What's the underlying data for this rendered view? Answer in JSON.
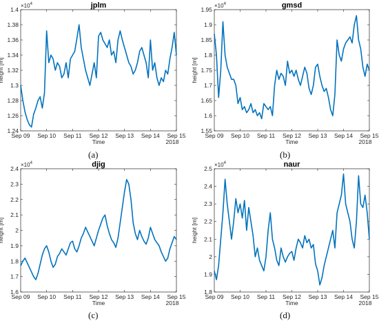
{
  "figure": {
    "captions": [
      "(a)",
      "(b)",
      "(c)",
      "(d)"
    ]
  },
  "style": {
    "line_color": "#0072BD",
    "axis_color": "#262626"
  },
  "chart_data": [
    {
      "type": "line",
      "title": "jplm",
      "xlabel": "Time",
      "ylabel": "height [m]",
      "exponent": "×10^4",
      "x_tick_labels": [
        "Sep 09",
        "Sep 10",
        "Sep 11",
        "Sep 12",
        "Sep 13",
        "Sep 14",
        "Sep 15"
      ],
      "x_year_label": "2018",
      "xlim": [
        "2018-09-09",
        "2018-09-15"
      ],
      "ylim": [
        1.24,
        1.4
      ],
      "y_ticks": [
        1.24,
        1.26,
        1.28,
        1.3,
        1.32,
        1.34,
        1.36,
        1.38,
        1.4
      ],
      "y_tick_labels": [
        "1.24",
        "1.26",
        "1.28",
        "1.3",
        "1.32",
        "1.34",
        "1.36",
        "1.38",
        "1.4"
      ],
      "series": [
        {
          "x": [
            "2018-09-09 00:00",
            "2018-09-09 02:00",
            "2018-09-09 04:00",
            "2018-09-09 06:00",
            "2018-09-09 08:00",
            "2018-09-09 10:00",
            "2018-09-09 12:00",
            "2018-09-09 14:00",
            "2018-09-09 16:00",
            "2018-09-09 18:00",
            "2018-09-09 20:00",
            "2018-09-09 22:00",
            "2018-09-10 00:00",
            "2018-09-10 02:00",
            "2018-09-10 04:00",
            "2018-09-10 06:00",
            "2018-09-10 08:00",
            "2018-09-10 10:00",
            "2018-09-10 12:00",
            "2018-09-10 14:00",
            "2018-09-10 16:00",
            "2018-09-10 18:00",
            "2018-09-10 20:00",
            "2018-09-10 22:00",
            "2018-09-11 00:00",
            "2018-09-11 02:00",
            "2018-09-11 04:00",
            "2018-09-11 06:00",
            "2018-09-11 08:00",
            "2018-09-11 10:00",
            "2018-09-11 12:00",
            "2018-09-11 14:00",
            "2018-09-11 16:00",
            "2018-09-11 18:00",
            "2018-09-11 20:00",
            "2018-09-11 22:00",
            "2018-09-12 00:00",
            "2018-09-12 02:00",
            "2018-09-12 04:00",
            "2018-09-12 06:00",
            "2018-09-12 08:00",
            "2018-09-12 10:00",
            "2018-09-12 12:00",
            "2018-09-12 14:00",
            "2018-09-12 16:00",
            "2018-09-12 18:00",
            "2018-09-12 20:00",
            "2018-09-12 22:00",
            "2018-09-13 00:00",
            "2018-09-13 02:00",
            "2018-09-13 04:00",
            "2018-09-13 06:00",
            "2018-09-13 08:00",
            "2018-09-13 10:00",
            "2018-09-13 12:00",
            "2018-09-13 14:00",
            "2018-09-13 16:00",
            "2018-09-13 18:00",
            "2018-09-13 20:00",
            "2018-09-13 22:00",
            "2018-09-14 00:00",
            "2018-09-14 02:00",
            "2018-09-14 04:00",
            "2018-09-14 06:00",
            "2018-09-14 08:00",
            "2018-09-14 10:00",
            "2018-09-14 12:00",
            "2018-09-14 14:00",
            "2018-09-14 16:00",
            "2018-09-14 18:00",
            "2018-09-14 20:00",
            "2018-09-14 22:00",
            "2018-09-15 00:00"
          ],
          "y": [
            1.3,
            1.28,
            1.265,
            1.255,
            1.248,
            1.245,
            1.262,
            1.27,
            1.28,
            1.285,
            1.27,
            1.29,
            1.372,
            1.33,
            1.34,
            1.335,
            1.32,
            1.33,
            1.325,
            1.31,
            1.315,
            1.33,
            1.31,
            1.335,
            1.34,
            1.345,
            1.362,
            1.38,
            1.35,
            1.335,
            1.32,
            1.31,
            1.3,
            1.315,
            1.33,
            1.31,
            1.365,
            1.37,
            1.36,
            1.355,
            1.35,
            1.36,
            1.34,
            1.345,
            1.33,
            1.36,
            1.372,
            1.36,
            1.35,
            1.34,
            1.33,
            1.325,
            1.315,
            1.32,
            1.33,
            1.345,
            1.35,
            1.34,
            1.33,
            1.31,
            1.36,
            1.32,
            1.33,
            1.31,
            1.3,
            1.31,
            1.305,
            1.32,
            1.315,
            1.335,
            1.35,
            1.37,
            1.34
          ]
        }
      ]
    },
    {
      "type": "line",
      "title": "gmsd",
      "xlabel": "Time",
      "ylabel": "height [m]",
      "exponent": "×10^4",
      "x_tick_labels": [
        "Sep 09",
        "Sep 10",
        "Sep 11",
        "Sep 12",
        "Sep 13",
        "Sep 14",
        "Sep 15"
      ],
      "x_year_label": "2018",
      "xlim": [
        "2018-09-09",
        "2018-09-15"
      ],
      "ylim": [
        1.55,
        1.95
      ],
      "y_ticks": [
        1.55,
        1.6,
        1.65,
        1.7,
        1.75,
        1.8,
        1.85,
        1.9,
        1.95
      ],
      "y_tick_labels": [
        "1.55",
        "1.6",
        "1.65",
        "1.7",
        "1.75",
        "1.8",
        "1.85",
        "1.9",
        "1.95"
      ],
      "series": [
        {
          "x": [
            "2018-09-09 00:00",
            "2018-09-09 02:00",
            "2018-09-09 04:00",
            "2018-09-09 06:00",
            "2018-09-09 08:00",
            "2018-09-09 10:00",
            "2018-09-09 12:00",
            "2018-09-09 14:00",
            "2018-09-09 16:00",
            "2018-09-09 18:00",
            "2018-09-09 20:00",
            "2018-09-09 22:00",
            "2018-09-10 00:00",
            "2018-09-10 02:00",
            "2018-09-10 04:00",
            "2018-09-10 06:00",
            "2018-09-10 08:00",
            "2018-09-10 10:00",
            "2018-09-10 12:00",
            "2018-09-10 14:00",
            "2018-09-10 16:00",
            "2018-09-10 18:00",
            "2018-09-10 20:00",
            "2018-09-10 22:00",
            "2018-09-11 00:00",
            "2018-09-11 02:00",
            "2018-09-11 04:00",
            "2018-09-11 06:00",
            "2018-09-11 08:00",
            "2018-09-11 10:00",
            "2018-09-11 12:00",
            "2018-09-11 14:00",
            "2018-09-11 16:00",
            "2018-09-11 18:00",
            "2018-09-11 20:00",
            "2018-09-11 22:00",
            "2018-09-12 00:00",
            "2018-09-12 02:00",
            "2018-09-12 04:00",
            "2018-09-12 06:00",
            "2018-09-12 08:00",
            "2018-09-12 10:00",
            "2018-09-12 12:00",
            "2018-09-12 14:00",
            "2018-09-12 16:00",
            "2018-09-12 18:00",
            "2018-09-12 20:00",
            "2018-09-12 22:00",
            "2018-09-13 00:00",
            "2018-09-13 02:00",
            "2018-09-13 04:00",
            "2018-09-13 06:00",
            "2018-09-13 08:00",
            "2018-09-13 10:00",
            "2018-09-13 12:00",
            "2018-09-13 14:00",
            "2018-09-13 16:00",
            "2018-09-13 18:00",
            "2018-09-13 20:00",
            "2018-09-13 22:00",
            "2018-09-14 00:00",
            "2018-09-14 02:00",
            "2018-09-14 04:00",
            "2018-09-14 06:00",
            "2018-09-14 08:00",
            "2018-09-14 10:00",
            "2018-09-14 12:00",
            "2018-09-14 14:00",
            "2018-09-14 16:00",
            "2018-09-14 18:00",
            "2018-09-14 20:00",
            "2018-09-14 22:00",
            "2018-09-15 00:00"
          ],
          "y": [
            1.87,
            1.8,
            1.66,
            1.75,
            1.91,
            1.8,
            1.76,
            1.74,
            1.72,
            1.72,
            1.7,
            1.64,
            1.66,
            1.62,
            1.63,
            1.61,
            1.62,
            1.64,
            1.61,
            1.62,
            1.6,
            1.61,
            1.59,
            1.64,
            1.63,
            1.62,
            1.63,
            1.6,
            1.7,
            1.75,
            1.72,
            1.74,
            1.73,
            1.7,
            1.78,
            1.74,
            1.75,
            1.73,
            1.75,
            1.72,
            1.7,
            1.73,
            1.76,
            1.74,
            1.69,
            1.67,
            1.7,
            1.76,
            1.77,
            1.73,
            1.7,
            1.68,
            1.69,
            1.66,
            1.62,
            1.6,
            1.67,
            1.85,
            1.8,
            1.78,
            1.82,
            1.84,
            1.85,
            1.86,
            1.84,
            1.9,
            1.93,
            1.85,
            1.82,
            1.76,
            1.73,
            1.77,
            1.75
          ]
        }
      ]
    },
    {
      "type": "line",
      "title": "djig",
      "xlabel": "Time",
      "ylabel": "height [m]",
      "exponent": "×10^4",
      "x_tick_labels": [
        "Sep 09",
        "Sep 10",
        "Sep 11",
        "Sep 12",
        "Sep 13",
        "Sep 14",
        "Sep 15"
      ],
      "x_year_label": "2018",
      "xlim": [
        "2018-09-09",
        "2018-09-15"
      ],
      "ylim": [
        1.6,
        2.4
      ],
      "y_ticks": [
        1.6,
        1.7,
        1.8,
        1.9,
        2.0,
        2.1,
        2.2,
        2.3,
        2.4
      ],
      "y_tick_labels": [
        "1.6",
        "1.7",
        "1.8",
        "1.9",
        "2",
        "2.1",
        "2.2",
        "2.3",
        "2.4"
      ],
      "series": [
        {
          "x": [
            "2018-09-09 00:00",
            "2018-09-09 02:00",
            "2018-09-09 04:00",
            "2018-09-09 06:00",
            "2018-09-09 08:00",
            "2018-09-09 10:00",
            "2018-09-09 12:00",
            "2018-09-09 14:00",
            "2018-09-09 16:00",
            "2018-09-09 18:00",
            "2018-09-09 20:00",
            "2018-09-09 22:00",
            "2018-09-10 00:00",
            "2018-09-10 02:00",
            "2018-09-10 04:00",
            "2018-09-10 06:00",
            "2018-09-10 08:00",
            "2018-09-10 10:00",
            "2018-09-10 12:00",
            "2018-09-10 14:00",
            "2018-09-10 16:00",
            "2018-09-10 18:00",
            "2018-09-10 20:00",
            "2018-09-10 22:00",
            "2018-09-11 00:00",
            "2018-09-11 02:00",
            "2018-09-11 04:00",
            "2018-09-11 06:00",
            "2018-09-11 08:00",
            "2018-09-11 10:00",
            "2018-09-11 12:00",
            "2018-09-11 14:00",
            "2018-09-11 16:00",
            "2018-09-11 18:00",
            "2018-09-11 20:00",
            "2018-09-11 22:00",
            "2018-09-12 00:00",
            "2018-09-12 02:00",
            "2018-09-12 04:00",
            "2018-09-12 06:00",
            "2018-09-12 08:00",
            "2018-09-12 10:00",
            "2018-09-12 12:00",
            "2018-09-12 14:00",
            "2018-09-12 16:00",
            "2018-09-12 18:00",
            "2018-09-12 20:00",
            "2018-09-12 22:00",
            "2018-09-13 00:00",
            "2018-09-13 02:00",
            "2018-09-13 04:00",
            "2018-09-13 06:00",
            "2018-09-13 08:00",
            "2018-09-13 10:00",
            "2018-09-13 12:00",
            "2018-09-13 14:00",
            "2018-09-13 16:00",
            "2018-09-13 18:00",
            "2018-09-13 20:00",
            "2018-09-13 22:00",
            "2018-09-14 00:00",
            "2018-09-14 02:00",
            "2018-09-14 04:00",
            "2018-09-14 06:00",
            "2018-09-14 08:00",
            "2018-09-14 10:00",
            "2018-09-14 12:00",
            "2018-09-14 14:00",
            "2018-09-14 16:00",
            "2018-09-14 18:00",
            "2018-09-14 20:00",
            "2018-09-14 22:00",
            "2018-09-15 00:00"
          ],
          "y": [
            1.77,
            1.8,
            1.82,
            1.79,
            1.76,
            1.73,
            1.7,
            1.68,
            1.72,
            1.78,
            1.84,
            1.88,
            1.9,
            1.86,
            1.8,
            1.76,
            1.78,
            1.83,
            1.85,
            1.88,
            1.86,
            1.84,
            1.88,
            1.92,
            1.93,
            1.88,
            1.86,
            1.9,
            1.95,
            1.98,
            2.02,
            1.99,
            1.96,
            1.93,
            1.9,
            1.95,
            2.0,
            2.04,
            2.08,
            2.1,
            2.03,
            1.98,
            1.94,
            1.92,
            1.89,
            1.95,
            2.05,
            2.15,
            2.25,
            2.33,
            2.3,
            2.2,
            2.05,
            1.98,
            1.94,
            2.0,
            1.96,
            1.93,
            1.91,
            1.95,
            2.02,
            1.98,
            1.94,
            1.92,
            1.9,
            1.86,
            1.83,
            1.8,
            1.82,
            1.88,
            1.92,
            1.96,
            1.94
          ]
        }
      ]
    },
    {
      "type": "line",
      "title": "naur",
      "xlabel": "Time",
      "ylabel": "height [m]",
      "exponent": "×10^4",
      "x_tick_labels": [
        "Sep 09",
        "Sep 10",
        "Sep 11",
        "Sep 12",
        "Sep 13",
        "Sep 14",
        "Sep 15"
      ],
      "x_year_label": "2018",
      "xlim": [
        "2018-09-09",
        "2018-09-15"
      ],
      "ylim": [
        1.8,
        2.5
      ],
      "y_ticks": [
        1.8,
        1.9,
        2.0,
        2.1,
        2.2,
        2.3,
        2.4,
        2.5
      ],
      "y_tick_labels": [
        "1.8",
        "1.9",
        "2",
        "2.1",
        "2.2",
        "2.3",
        "2.4",
        "2.5"
      ],
      "series": [
        {
          "x": [
            "2018-09-09 00:00",
            "2018-09-09 02:00",
            "2018-09-09 04:00",
            "2018-09-09 06:00",
            "2018-09-09 08:00",
            "2018-09-09 10:00",
            "2018-09-09 12:00",
            "2018-09-09 14:00",
            "2018-09-09 16:00",
            "2018-09-09 18:00",
            "2018-09-09 20:00",
            "2018-09-09 22:00",
            "2018-09-10 00:00",
            "2018-09-10 02:00",
            "2018-09-10 04:00",
            "2018-09-10 06:00",
            "2018-09-10 08:00",
            "2018-09-10 10:00",
            "2018-09-10 12:00",
            "2018-09-10 14:00",
            "2018-09-10 16:00",
            "2018-09-10 18:00",
            "2018-09-10 20:00",
            "2018-09-10 22:00",
            "2018-09-11 00:00",
            "2018-09-11 02:00",
            "2018-09-11 04:00",
            "2018-09-11 06:00",
            "2018-09-11 08:00",
            "2018-09-11 10:00",
            "2018-09-11 12:00",
            "2018-09-11 14:00",
            "2018-09-11 16:00",
            "2018-09-11 18:00",
            "2018-09-11 20:00",
            "2018-09-11 22:00",
            "2018-09-12 00:00",
            "2018-09-12 02:00",
            "2018-09-12 04:00",
            "2018-09-12 06:00",
            "2018-09-12 08:00",
            "2018-09-12 10:00",
            "2018-09-12 12:00",
            "2018-09-12 14:00",
            "2018-09-12 16:00",
            "2018-09-12 18:00",
            "2018-09-12 20:00",
            "2018-09-12 22:00",
            "2018-09-13 00:00",
            "2018-09-13 02:00",
            "2018-09-13 04:00",
            "2018-09-13 06:00",
            "2018-09-13 08:00",
            "2018-09-13 10:00",
            "2018-09-13 12:00",
            "2018-09-13 14:00",
            "2018-09-13 16:00",
            "2018-09-13 18:00",
            "2018-09-13 20:00",
            "2018-09-13 22:00",
            "2018-09-14 00:00",
            "2018-09-14 02:00",
            "2018-09-14 04:00",
            "2018-09-14 06:00",
            "2018-09-14 08:00",
            "2018-09-14 10:00",
            "2018-09-14 12:00",
            "2018-09-14 14:00",
            "2018-09-14 16:00",
            "2018-09-14 18:00",
            "2018-09-14 20:00",
            "2018-09-14 22:00",
            "2018-09-15 00:00"
          ],
          "y": [
            1.92,
            1.87,
            1.95,
            2.1,
            2.25,
            2.44,
            2.3,
            2.2,
            2.1,
            2.2,
            2.33,
            2.25,
            2.3,
            2.22,
            2.32,
            2.15,
            2.28,
            2.2,
            2.12,
            2.0,
            2.05,
            1.98,
            1.95,
            1.92,
            2.0,
            2.15,
            2.25,
            2.1,
            2.05,
            1.98,
            1.95,
            2.05,
            2.0,
            1.97,
            2.0,
            2.02,
            2.03,
            1.98,
            2.05,
            2.1,
            2.08,
            2.05,
            2.12,
            2.08,
            2.1,
            2.05,
            2.07,
            1.96,
            1.92,
            1.84,
            1.88,
            1.95,
            2.0,
            2.05,
            2.1,
            2.15,
            2.05,
            2.25,
            2.3,
            2.35,
            2.47,
            2.3,
            2.25,
            2.2,
            2.1,
            2.05,
            2.2,
            2.46,
            2.3,
            2.28,
            2.35,
            2.25,
            2.1
          ]
        }
      ]
    }
  ]
}
